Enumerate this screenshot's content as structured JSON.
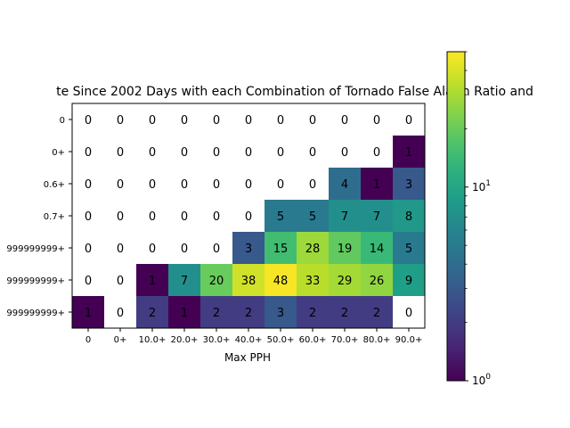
{
  "chart_data": {
    "type": "heatmap",
    "title": "te Since 2002 Days with each Combination of Tornado False Alarm Ratio and",
    "xlabel": "Max PPH",
    "ylabel": "",
    "x_categories": [
      "0",
      "0+",
      "10.0+",
      "20.0+",
      "30.0+",
      "40.0+",
      "50.0+",
      "60.0+",
      "70.0+",
      "80.0+",
      "90.0+"
    ],
    "y_categories": [
      "0",
      "0+",
      "0.6+",
      "0.7+",
      "999999999+",
      "999999999+",
      "999999999+"
    ],
    "values": [
      [
        0,
        0,
        0,
        0,
        0,
        0,
        0,
        0,
        0,
        0,
        0
      ],
      [
        0,
        0,
        0,
        0,
        0,
        0,
        0,
        0,
        0,
        0,
        1
      ],
      [
        0,
        0,
        0,
        0,
        0,
        0,
        0,
        0,
        4,
        1,
        3
      ],
      [
        0,
        0,
        0,
        0,
        0,
        0,
        5,
        5,
        7,
        7,
        8
      ],
      [
        0,
        0,
        0,
        0,
        0,
        3,
        15,
        28,
        19,
        14,
        5
      ],
      [
        0,
        0,
        1,
        7,
        20,
        38,
        48,
        33,
        29,
        26,
        9
      ],
      [
        1,
        0,
        2,
        1,
        2,
        2,
        3,
        2,
        2,
        2,
        0
      ]
    ],
    "colormap": "viridis",
    "color_scale": "log",
    "color_range": [
      1,
      50
    ],
    "zero_color": "#ffffff",
    "colorbar_ticks": [
      {
        "base": "10",
        "exp": "0",
        "value": 1
      },
      {
        "base": "10",
        "exp": "1",
        "value": 10
      }
    ]
  }
}
